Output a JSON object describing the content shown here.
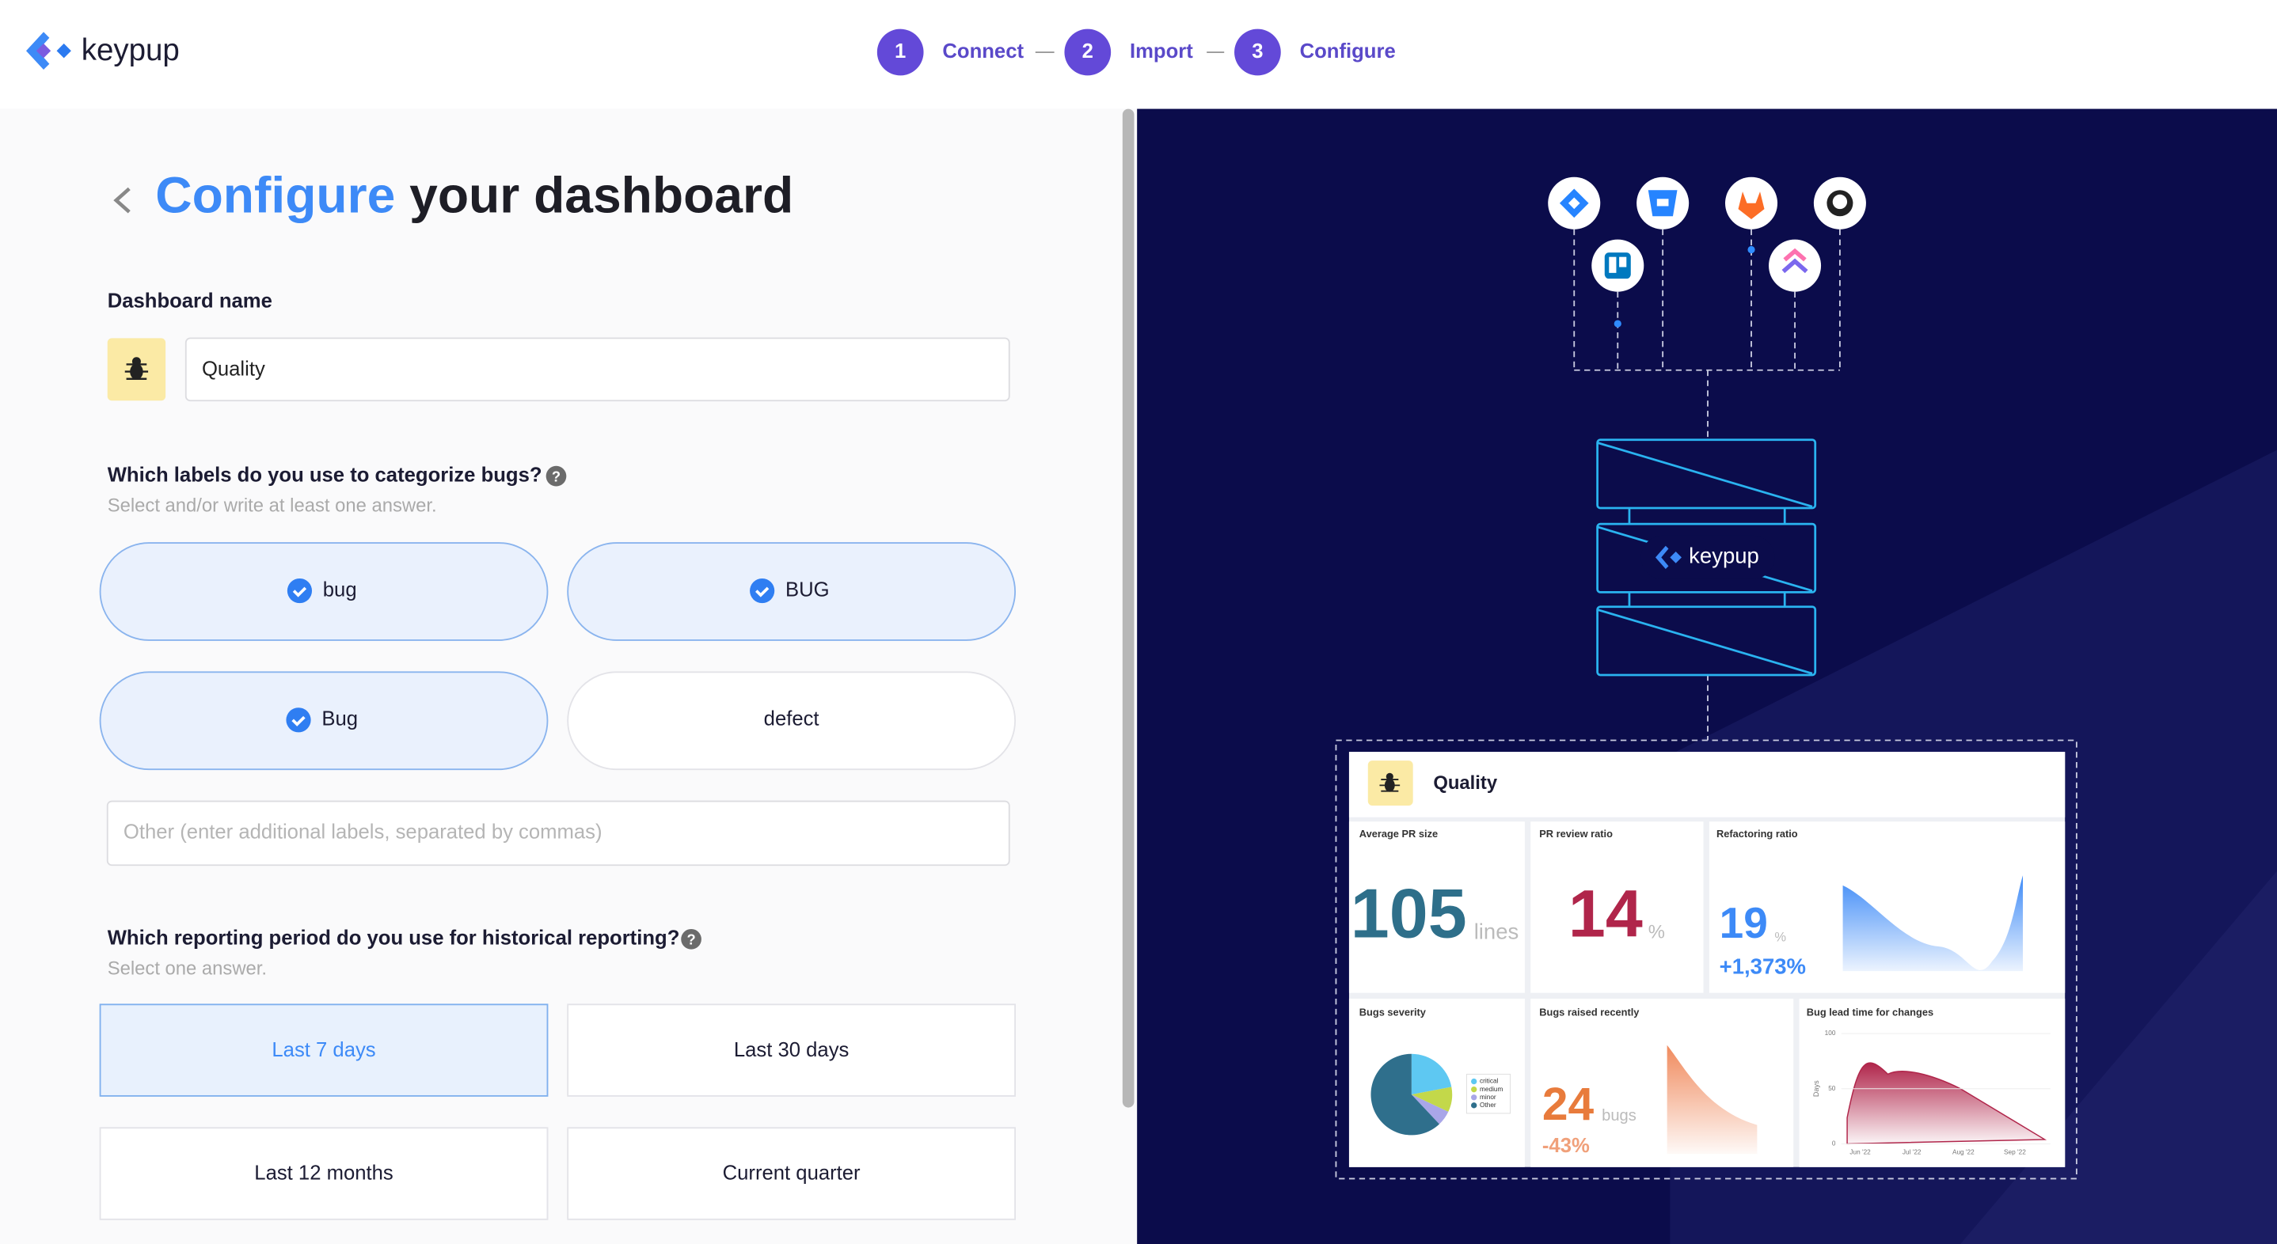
{
  "header": {
    "logo": "keypup",
    "steps": [
      {
        "number": "1",
        "label": "Connect"
      },
      {
        "number": "2",
        "label": "Import"
      },
      {
        "number": "3",
        "label": "Configure"
      }
    ]
  },
  "form": {
    "title_highlight": "Configure",
    "title_rest": "your dashboard",
    "name_label": "Dashboard name",
    "name_value": "Quality",
    "labels_question": "Which labels do you use to categorize bugs?",
    "labels_hint": "Select and/or write at least one answer.",
    "label_options": [
      {
        "label": "bug",
        "selected": true
      },
      {
        "label": "BUG",
        "selected": true
      },
      {
        "label": "Bug",
        "selected": true
      },
      {
        "label": "defect",
        "selected": false
      }
    ],
    "other_placeholder": "Other (enter additional labels, separated by commas)",
    "period_question": "Which reporting period do you use for historical reporting?",
    "period_hint": "Select one answer.",
    "period_options": [
      {
        "label": "Last 7 days",
        "selected": true
      },
      {
        "label": "Last 30 days",
        "selected": false
      },
      {
        "label": "Last 12 months",
        "selected": false
      },
      {
        "label": "Current quarter",
        "selected": false
      }
    ]
  },
  "illustration": {
    "logo": "keypup",
    "preview": {
      "title": "Quality",
      "pr_size": {
        "title": "Average PR size",
        "value": 105,
        "unit": "lines"
      },
      "review_ratio": {
        "title": "PR review ratio",
        "value": 14,
        "unit": "%"
      },
      "refactoring": {
        "title": "Refactoring ratio",
        "value": 19,
        "unit": "%",
        "change": "+1,373%"
      },
      "severity": {
        "title": "Bugs severity",
        "legend": [
          "critical",
          "medium",
          "minor",
          "Other"
        ],
        "values": [
          22,
          10,
          6,
          62
        ],
        "colors": [
          "#5ec8f2",
          "#c3d84a",
          "#a9a6e8",
          "#2f6f8c"
        ]
      },
      "bugs_raised": {
        "title": "Bugs raised recently",
        "value": 24,
        "unit": "bugs",
        "change": "-43%"
      },
      "lead_time": {
        "title": "Bug lead time for changes",
        "y_label": "Days",
        "yticks": [
          0,
          50,
          100
        ],
        "ylim": [
          0,
          100
        ],
        "xticks": [
          "Jun '22",
          "Jul '22",
          "Aug '22",
          "Sep '22"
        ]
      }
    }
  }
}
